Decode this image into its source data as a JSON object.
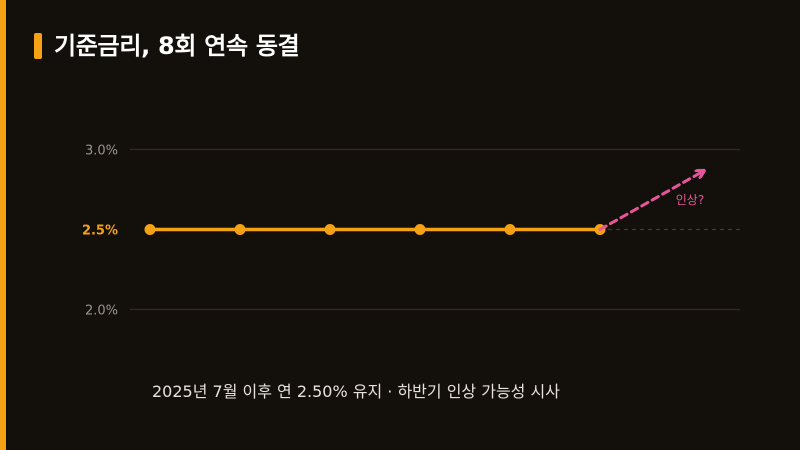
{
  "title": "기준금리, 8회 연속 동결",
  "caption": "2025년 7월 이후 연 2.50% 유지 · 하반기 인상 가능성 시사",
  "colors": {
    "accent": "#f5a114",
    "projection": "#e8559a",
    "background": "#130f0b",
    "gridline": "#2e2924",
    "tick_text": "#9a948d"
  },
  "chart_data": {
    "type": "line",
    "y_ticks": [
      {
        "label": "3.0%",
        "value": 3.0,
        "highlight": false
      },
      {
        "label": "2.5%",
        "value": 2.5,
        "highlight": true
      },
      {
        "label": "2.0%",
        "value": 2.0,
        "highlight": false
      }
    ],
    "ylim": [
      1.75,
      3.25
    ],
    "reference_line": 2.5,
    "series": [
      {
        "values": [
          2.5,
          2.5,
          2.5,
          2.5,
          2.5,
          2.5
        ]
      }
    ],
    "projection": {
      "from": 2.5,
      "to": 2.86,
      "label": "인상?"
    },
    "grid": true,
    "legend": "none"
  }
}
